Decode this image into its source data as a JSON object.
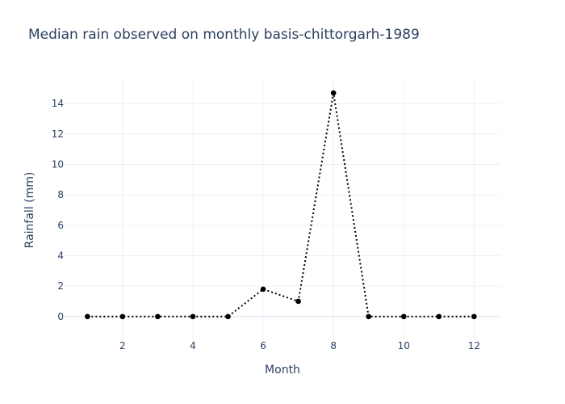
{
  "chart_data": {
    "type": "line",
    "title": "Median rain observed on monthly basis-chittorgarh-1989",
    "xlabel": "Month",
    "ylabel": "Rainfall (mm)",
    "x": [
      1,
      2,
      3,
      4,
      5,
      6,
      7,
      8,
      9,
      10,
      11,
      12
    ],
    "series": [
      {
        "values": [
          0,
          0,
          0,
          0,
          0,
          1.8,
          1.0,
          14.7,
          0,
          0,
          0,
          0
        ],
        "color": "#000000",
        "line_style": "dotted",
        "markers": true
      }
    ],
    "xlim": [
      0.35,
      12.75
    ],
    "ylim": [
      -1.5,
      15.5
    ],
    "x_ticks": [
      2,
      4,
      6,
      8,
      10,
      12
    ],
    "y_ticks": [
      0,
      2,
      4,
      6,
      8,
      10,
      12,
      14
    ],
    "grid": true,
    "legend": "none"
  }
}
